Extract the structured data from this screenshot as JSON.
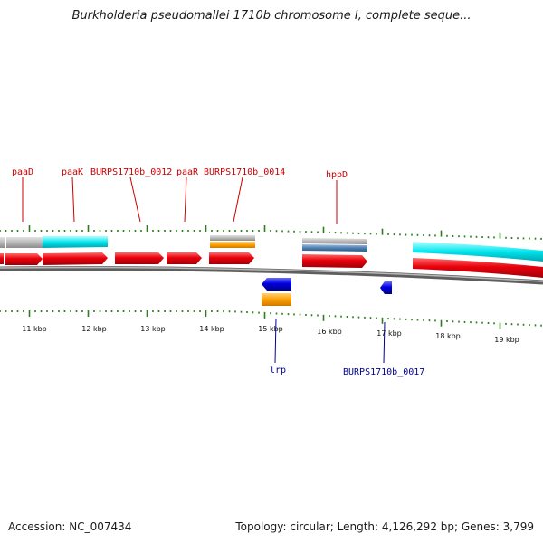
{
  "title": "Burkholderia pseudomallei 1710b chromosome I, complete seque...",
  "footer": {
    "accession": "Accession: NC_007434",
    "summary": "Topology: circular; Length: 4,126,292 bp; Genes: 3,799"
  },
  "ruler": {
    "ticks": [
      "11 kbp",
      "12 kbp",
      "13 kbp",
      "14 kbp",
      "15 kbp",
      "16 kbp",
      "17 kbp",
      "18 kbp",
      "19 kbp"
    ]
  },
  "labels": {
    "forward": [
      "paaD",
      "paaK",
      "BURPS1710b_0012",
      "paaR",
      "BURPS1710b_0014",
      "hppD"
    ],
    "reverse": [
      "lrp",
      "BURPS1710b_0017"
    ]
  },
  "colors": {
    "forward_gene": "#e8000b",
    "reverse_gene": "#0000e0",
    "feature_cyan": "#00e5ee",
    "feature_gray": "#b8b8b8",
    "feature_orange": "#ff9f00",
    "feature_steel": "#4f81b3",
    "forward_label": "#cc0000",
    "reverse_label": "#000099",
    "tick": "#2e7d1b"
  }
}
